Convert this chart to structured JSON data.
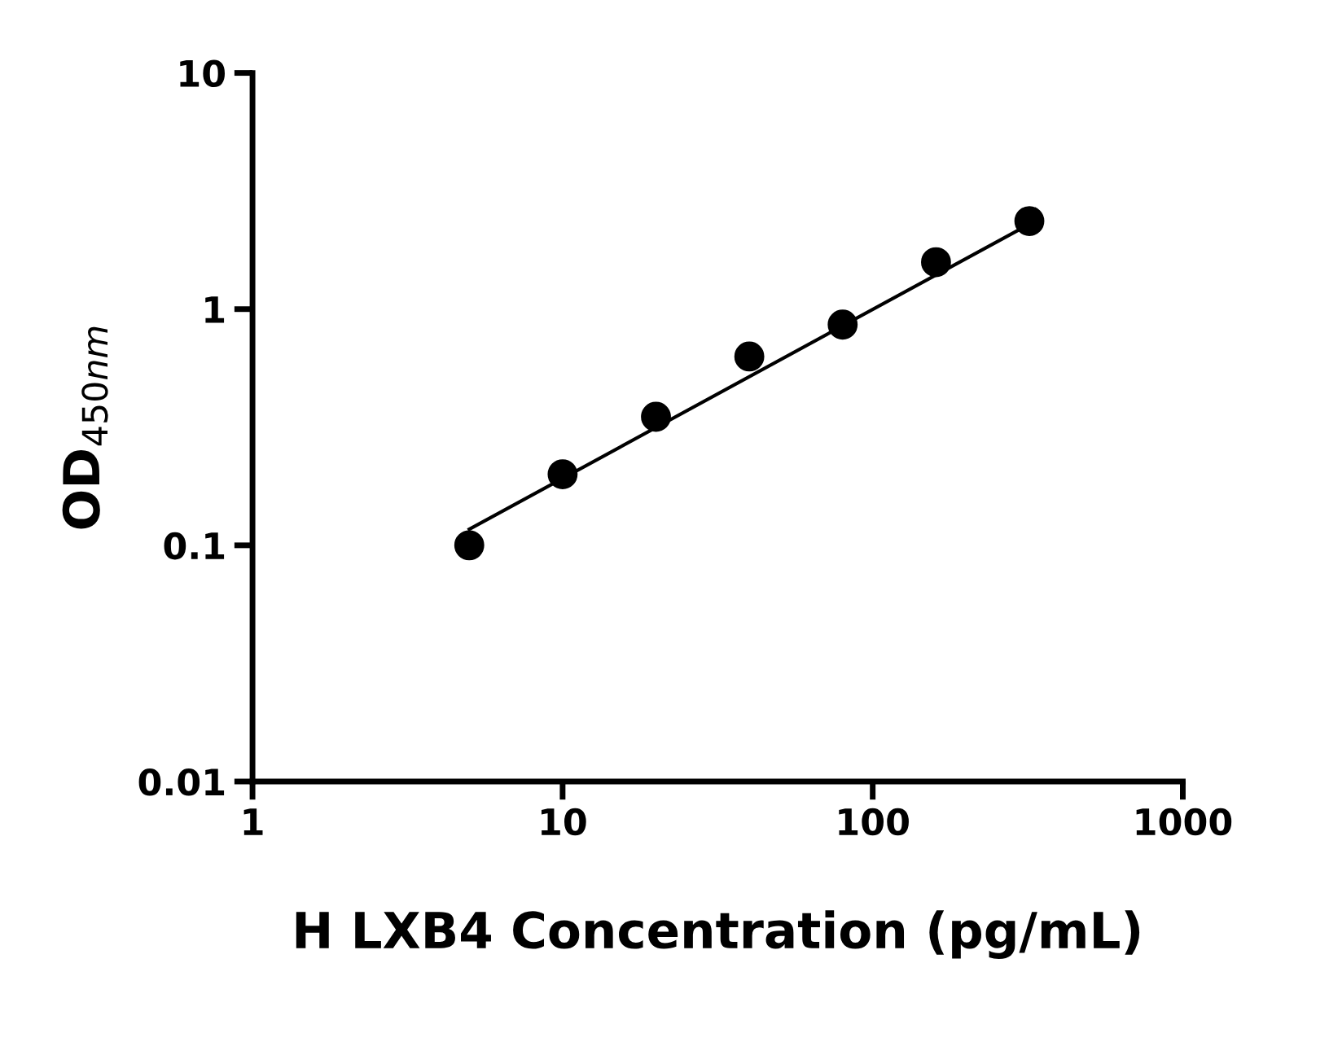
{
  "chart_data": {
    "type": "scatter",
    "xlabel": "H LXB4 Concentration (pg/mL)",
    "ylabel": "OD$_{450nm}$",
    "log": "xy",
    "xlim": [
      1,
      1000
    ],
    "ylim": [
      0.01,
      10
    ],
    "xticks": [
      1,
      10,
      100,
      1000
    ],
    "yticks": [
      0.01,
      0.1,
      1,
      10
    ],
    "grid": false,
    "legend": false,
    "series": [
      {
        "color": "#000000",
        "marker": "circle",
        "x": [
          5,
          10,
          20,
          40,
          80,
          160,
          320
        ],
        "values": [
          0.1,
          0.2,
          0.35,
          0.63,
          0.86,
          1.58,
          2.36
        ]
      },
      {
        "type": "line",
        "color": "#000000",
        "marker": "none",
        "line_style": "solid",
        "x": [
          5,
          320
        ],
        "values": [
          0.117,
          2.29
        ]
      }
    ]
  }
}
